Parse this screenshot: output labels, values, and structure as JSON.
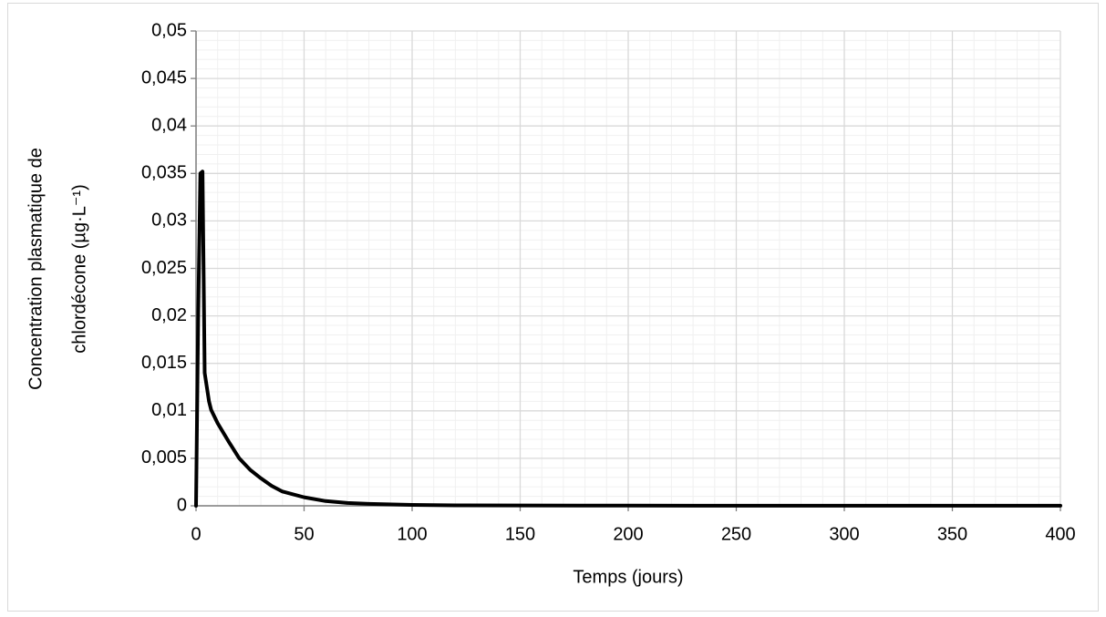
{
  "chart_data": {
    "type": "line",
    "x_label": "Temps (jours)",
    "y_label": [
      "Concentration plasmatique de",
      "chlordécone (µg·L⁻¹)"
    ],
    "series": [
      {
        "color": "#000000",
        "x": [
          0,
          1,
          2,
          3,
          4,
          5,
          6,
          7,
          10,
          15,
          20,
          25,
          30,
          35,
          40,
          50,
          60,
          70,
          80,
          100,
          120,
          150,
          200,
          300,
          400
        ],
        "values": [
          0,
          0.02,
          0.035,
          0.0352,
          0.014,
          0.0125,
          0.011,
          0.0101,
          0.0087,
          0.0068,
          0.005,
          0.0038,
          0.0029,
          0.0021,
          0.0015,
          0.0009,
          0.0005,
          0.0003,
          0.0002,
          0.0001,
          5e-05,
          3e-05,
          2e-05,
          1e-05,
          1e-05
        ]
      }
    ],
    "xlim": [
      0,
      400
    ],
    "xticks": [
      0,
      50,
      100,
      150,
      200,
      250,
      300,
      350,
      400
    ],
    "ylim": [
      0,
      0.05
    ],
    "yticks": [
      0,
      {
        "value": 0.005,
        "label": "0,005"
      },
      {
        "value": 0.01,
        "label": "0,01"
      },
      {
        "value": 0.015,
        "label": "0,015"
      },
      {
        "value": 0.02,
        "label": "0,02"
      },
      {
        "value": 0.025,
        "label": "0,025"
      },
      {
        "value": 0.03,
        "label": "0,03"
      },
      {
        "value": 0.035,
        "label": "0,035"
      },
      {
        "value": 0.04,
        "label": "0,04"
      },
      {
        "value": 0.045,
        "label": "0,045"
      },
      {
        "value": 0.05,
        "label": "0,05"
      }
    ],
    "grid": true,
    "minor_grid": true
  }
}
